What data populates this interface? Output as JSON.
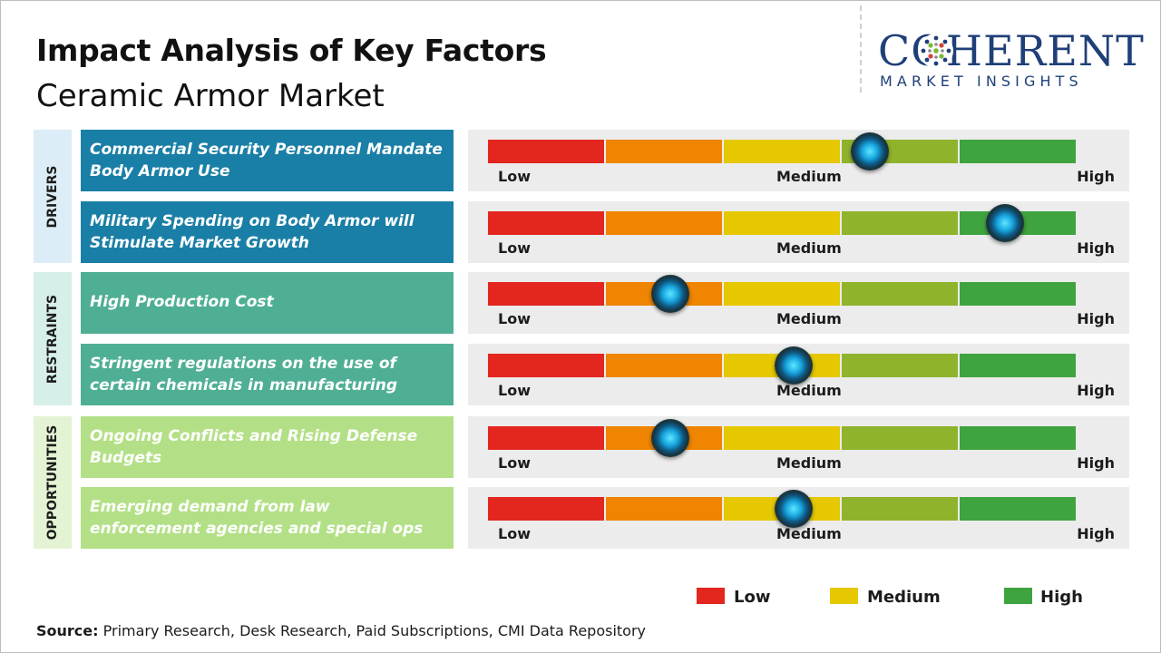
{
  "header": {
    "title": "Impact Analysis of Key Factors",
    "subtitle": "Ceramic Armor Market"
  },
  "logo": {
    "brand": "COHERENT",
    "tagline": "MARKET INSIGHTS"
  },
  "colors": {
    "scale": [
      "#e3271f",
      "#ef8500",
      "#e6c800",
      "#8fb32b",
      "#3fa33f"
    ],
    "drivers_category": "#dcedf7",
    "drivers_factor": "#1a7fa6",
    "restraints_category": "#d7efe9",
    "restraints_factor": "#4faf95",
    "opportunities_category": "#e3f3d3",
    "opportunities_factor": "#b3e086",
    "meter_bg": "#ececec"
  },
  "scale_labels": {
    "low": "Low",
    "medium": "Medium",
    "high": "High"
  },
  "chart_data": {
    "type": "table",
    "scale": [
      "Low",
      "Medium",
      "High"
    ],
    "categories": [
      {
        "name": "DRIVERS",
        "factors": [
          {
            "label": "Commercial Security Personnel Mandate Body Armor Use",
            "impact": 0.65
          },
          {
            "label": "Military Spending on Body Armor will Stimulate Market Growth",
            "impact": 0.88
          }
        ]
      },
      {
        "name": "RESTRAINTS",
        "factors": [
          {
            "label": "High Production Cost",
            "impact": 0.31
          },
          {
            "label": "Stringent regulations on the use of certain chemicals in manufacturing",
            "impact": 0.52
          }
        ]
      },
      {
        "name": "OPPORTUNITIES",
        "factors": [
          {
            "label": "Ongoing Conflicts and Rising Defense Budgets",
            "impact": 0.31
          },
          {
            "label": "Emerging demand from law enforcement agencies and special ops",
            "impact": 0.52
          }
        ]
      }
    ]
  },
  "legend": [
    {
      "label": "Low",
      "color": "#e3271f"
    },
    {
      "label": "Medium",
      "color": "#e6c800"
    },
    {
      "label": "High",
      "color": "#3fa33f"
    }
  ],
  "source": {
    "label": "Source:",
    "text": " Primary Research, Desk Research, Paid Subscriptions, CMI Data Repository"
  }
}
